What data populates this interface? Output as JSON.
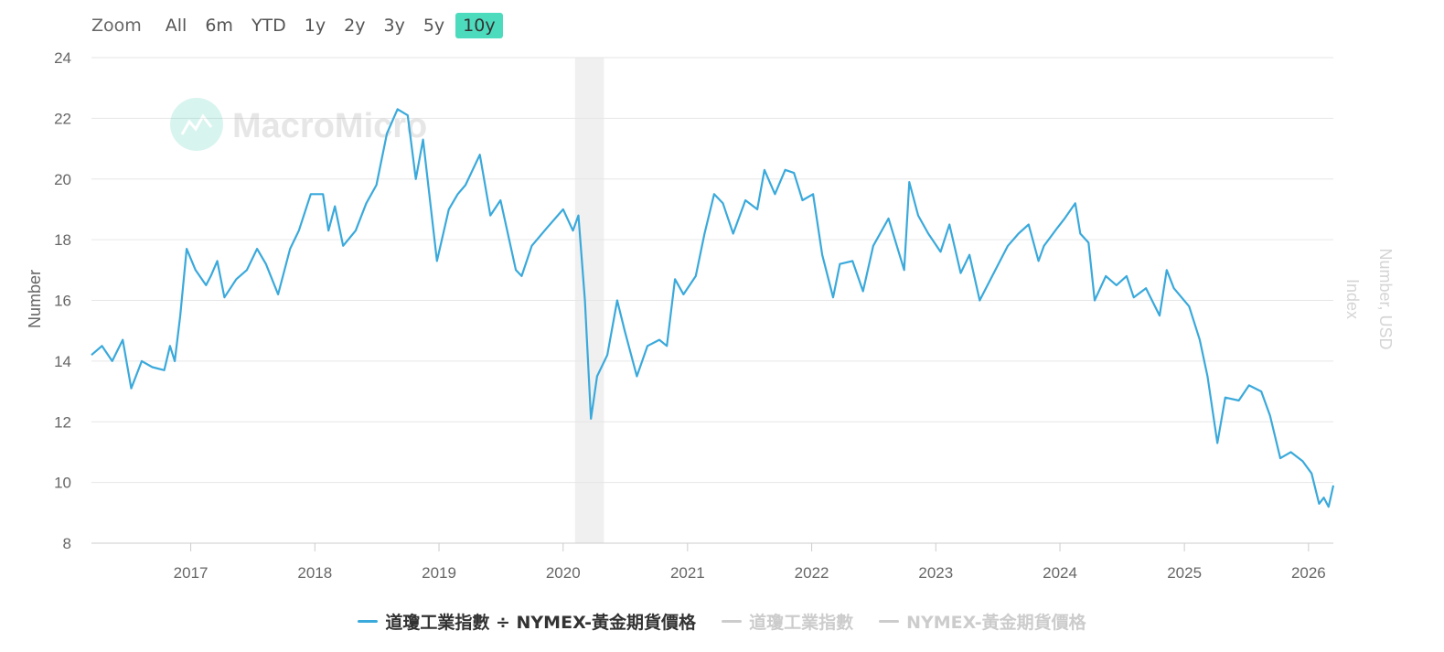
{
  "range_selector": {
    "zoom_label": "Zoom",
    "buttons": [
      "All",
      "6m",
      "YTD",
      "1y",
      "2y",
      "3y",
      "5y",
      "10y"
    ],
    "active": "10y"
  },
  "watermark": {
    "text": "MacroMicro"
  },
  "colors": {
    "series": "#3aa9db",
    "active_button": "#4ddbbd",
    "recession_band": "#f0f0f0",
    "legend_off": "#cccccc"
  },
  "chart_data": {
    "type": "line",
    "title": "",
    "ylabel": "Number",
    "y2label": "Number, USD",
    "y3label": "Index",
    "ylim": [
      8,
      24
    ],
    "yticks": [
      8,
      10,
      12,
      14,
      16,
      18,
      20,
      22,
      24
    ],
    "xlim": [
      "2016-03-15",
      "2026-03-15"
    ],
    "xticks": [
      "2017",
      "2018",
      "2019",
      "2020",
      "2021",
      "2022",
      "2023",
      "2024",
      "2025",
      "2026"
    ],
    "grid": true,
    "legend_position": "bottom",
    "shaded_periods": [
      {
        "start": "2020-02-05",
        "end": "2020-04-30"
      }
    ],
    "series": [
      {
        "name": "道瓊工業指數 ÷ NYMEX-黃金期貨價格",
        "color": "#3aa9db",
        "visible": true,
        "points": [
          [
            "2016-03-15",
            14.2
          ],
          [
            "2016-04-15",
            14.5
          ],
          [
            "2016-05-15",
            14.0
          ],
          [
            "2016-06-15",
            14.7
          ],
          [
            "2016-07-10",
            13.1
          ],
          [
            "2016-08-10",
            14.0
          ],
          [
            "2016-09-10",
            13.8
          ],
          [
            "2016-10-15",
            13.7
          ],
          [
            "2016-11-01",
            14.5
          ],
          [
            "2016-11-15",
            14.0
          ],
          [
            "2016-12-01",
            15.5
          ],
          [
            "2016-12-20",
            17.7
          ],
          [
            "2017-01-15",
            17.0
          ],
          [
            "2017-02-15",
            16.5
          ],
          [
            "2017-03-01",
            16.8
          ],
          [
            "2017-03-20",
            17.3
          ],
          [
            "2017-04-10",
            16.1
          ],
          [
            "2017-05-15",
            16.7
          ],
          [
            "2017-06-15",
            17.0
          ],
          [
            "2017-07-15",
            17.7
          ],
          [
            "2017-08-10",
            17.2
          ],
          [
            "2017-09-15",
            16.2
          ],
          [
            "2017-10-20",
            17.7
          ],
          [
            "2017-11-15",
            18.3
          ],
          [
            "2017-12-20",
            19.5
          ],
          [
            "2018-01-25",
            19.5
          ],
          [
            "2018-02-10",
            18.3
          ],
          [
            "2018-03-01",
            19.1
          ],
          [
            "2018-03-25",
            17.8
          ],
          [
            "2018-05-01",
            18.3
          ],
          [
            "2018-06-01",
            19.2
          ],
          [
            "2018-07-01",
            19.8
          ],
          [
            "2018-08-01",
            21.5
          ],
          [
            "2018-09-01",
            22.3
          ],
          [
            "2018-10-01",
            22.1
          ],
          [
            "2018-10-25",
            20.0
          ],
          [
            "2018-11-15",
            21.3
          ],
          [
            "2018-12-26",
            17.3
          ],
          [
            "2019-01-30",
            19.0
          ],
          [
            "2019-02-25",
            19.5
          ],
          [
            "2019-03-20",
            19.8
          ],
          [
            "2019-05-01",
            20.8
          ],
          [
            "2019-06-01",
            18.8
          ],
          [
            "2019-07-01",
            19.3
          ],
          [
            "2019-08-15",
            17.0
          ],
          [
            "2019-09-01",
            16.8
          ],
          [
            "2019-10-01",
            17.8
          ],
          [
            "2019-11-15",
            18.4
          ],
          [
            "2020-01-01",
            19.0
          ],
          [
            "2020-01-30",
            18.3
          ],
          [
            "2020-02-15",
            18.8
          ],
          [
            "2020-03-05",
            16.0
          ],
          [
            "2020-03-23",
            12.1
          ],
          [
            "2020-04-10",
            13.5
          ],
          [
            "2020-05-10",
            14.2
          ],
          [
            "2020-06-08",
            16.0
          ],
          [
            "2020-06-30",
            15.0
          ],
          [
            "2020-08-05",
            13.5
          ],
          [
            "2020-09-05",
            14.5
          ],
          [
            "2020-10-10",
            14.7
          ],
          [
            "2020-11-01",
            14.5
          ],
          [
            "2020-11-25",
            16.7
          ],
          [
            "2020-12-20",
            16.2
          ],
          [
            "2021-01-25",
            16.8
          ],
          [
            "2021-02-20",
            18.2
          ],
          [
            "2021-03-20",
            19.5
          ],
          [
            "2021-04-15",
            19.2
          ],
          [
            "2021-05-15",
            18.2
          ],
          [
            "2021-06-20",
            19.3
          ],
          [
            "2021-07-25",
            19.0
          ],
          [
            "2021-08-15",
            20.3
          ],
          [
            "2021-09-15",
            19.5
          ],
          [
            "2021-10-15",
            20.3
          ],
          [
            "2021-11-10",
            20.2
          ],
          [
            "2021-12-05",
            19.3
          ],
          [
            "2022-01-05",
            19.5
          ],
          [
            "2022-02-01",
            17.5
          ],
          [
            "2022-03-05",
            16.1
          ],
          [
            "2022-03-25",
            17.2
          ],
          [
            "2022-05-01",
            17.3
          ],
          [
            "2022-06-01",
            16.3
          ],
          [
            "2022-07-01",
            17.8
          ],
          [
            "2022-08-15",
            18.7
          ],
          [
            "2022-09-30",
            17.0
          ],
          [
            "2022-10-15",
            19.9
          ],
          [
            "2022-11-10",
            18.8
          ],
          [
            "2022-12-10",
            18.2
          ],
          [
            "2023-01-15",
            17.6
          ],
          [
            "2023-02-10",
            18.5
          ],
          [
            "2023-03-15",
            16.9
          ],
          [
            "2023-04-10",
            17.5
          ],
          [
            "2023-05-10",
            16.0
          ],
          [
            "2023-06-25",
            17.0
          ],
          [
            "2023-08-01",
            17.8
          ],
          [
            "2023-09-01",
            18.2
          ],
          [
            "2023-10-01",
            18.5
          ],
          [
            "2023-10-30",
            17.3
          ],
          [
            "2023-11-15",
            17.8
          ],
          [
            "2023-12-25",
            18.4
          ],
          [
            "2024-01-15",
            18.7
          ],
          [
            "2024-02-15",
            19.2
          ],
          [
            "2024-03-01",
            18.2
          ],
          [
            "2024-03-25",
            17.9
          ],
          [
            "2024-04-12",
            16.0
          ],
          [
            "2024-05-15",
            16.8
          ],
          [
            "2024-06-15",
            16.5
          ],
          [
            "2024-07-15",
            16.8
          ],
          [
            "2024-08-05",
            16.1
          ],
          [
            "2024-09-10",
            16.4
          ],
          [
            "2024-10-20",
            15.5
          ],
          [
            "2024-11-10",
            17.0
          ],
          [
            "2024-12-01",
            16.4
          ],
          [
            "2025-01-15",
            15.8
          ],
          [
            "2025-02-15",
            14.7
          ],
          [
            "2025-03-10",
            13.5
          ],
          [
            "2025-04-08",
            11.3
          ],
          [
            "2025-05-01",
            12.8
          ],
          [
            "2025-06-10",
            12.7
          ],
          [
            "2025-07-10",
            13.2
          ],
          [
            "2025-08-15",
            13.0
          ],
          [
            "2025-09-10",
            12.2
          ],
          [
            "2025-10-10",
            10.8
          ],
          [
            "2025-11-10",
            11.0
          ],
          [
            "2025-12-15",
            10.7
          ],
          [
            "2026-01-10",
            10.3
          ],
          [
            "2026-02-01",
            9.3
          ],
          [
            "2026-02-15",
            9.5
          ],
          [
            "2026-03-01",
            9.2
          ],
          [
            "2026-03-15",
            9.9
          ]
        ]
      },
      {
        "name": "道瓊工業指數",
        "color": "#cccccc",
        "visible": false
      },
      {
        "name": "NYMEX-黃金期貨價格",
        "color": "#cccccc",
        "visible": false
      }
    ]
  }
}
